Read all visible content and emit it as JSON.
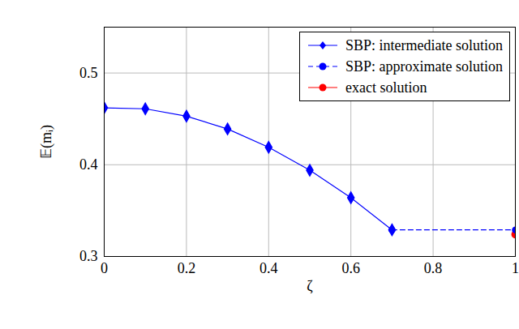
{
  "chart_data": {
    "type": "line",
    "x_label": "ζ",
    "y_label": "𝔼(mᵢ)",
    "xlim": [
      0,
      1
    ],
    "xticks": [
      0,
      0.2,
      0.4,
      0.6,
      0.8,
      1
    ],
    "ylim": [
      0.3,
      0.55
    ],
    "yticks": [
      0.3,
      0.4,
      0.5
    ],
    "grid": true,
    "legend": "top-right",
    "series": [
      {
        "name": "SBP: intermediate solution",
        "color": "#0000ff",
        "marker": "diamond",
        "line_style": "solid",
        "x": [
          0,
          0.1,
          0.2,
          0.3,
          0.4,
          0.5,
          0.6,
          0.7
        ],
        "values": [
          0.462,
          0.461,
          0.453,
          0.439,
          0.419,
          0.394,
          0.364,
          0.329
        ]
      },
      {
        "name": "SBP: approximate solution",
        "color": "#0000ff",
        "marker": "circle",
        "line_style": "dashed",
        "x": [
          0.7,
          1
        ],
        "values": [
          0.329,
          0.329
        ]
      },
      {
        "name": "exact solution",
        "color": "#ff0000",
        "marker": "circle",
        "line_style": "solid",
        "x": [
          1
        ],
        "values": [
          0.324
        ]
      }
    ]
  }
}
